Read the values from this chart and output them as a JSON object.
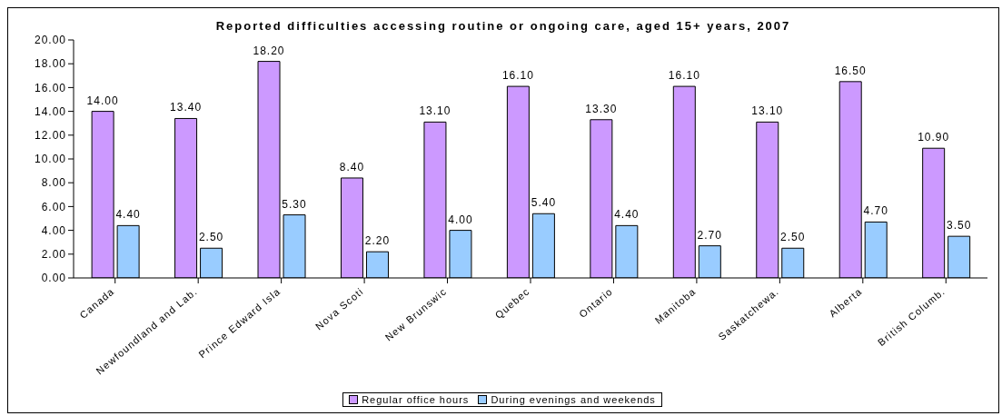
{
  "chart_data": {
    "type": "bar",
    "title": "Reported difficulties accessing routine or ongoing care, aged 15+ years, 2007",
    "categories": [
      "Canada",
      "Newfoundland and Lab.",
      "Prince Edward Isla",
      "Nova Scoti",
      "New Brunswic",
      "Quebec",
      "Ontario",
      "Manitoba",
      "Saskatchewa.",
      "Alberta",
      "British Columb."
    ],
    "series": [
      {
        "name": "Regular office hours",
        "color": "#cc99ff",
        "values": [
          14.0,
          13.4,
          18.2,
          8.4,
          13.1,
          16.1,
          13.3,
          16.1,
          13.1,
          16.5,
          10.9
        ],
        "value_labels": [
          "14.00",
          "13.40",
          "18.20",
          "8.40",
          "13.10",
          "16.10",
          "13.30",
          "16.10",
          "13.10",
          "16.50",
          "10.90"
        ]
      },
      {
        "name": "During evenings and weekends",
        "color": "#99ccff",
        "values": [
          4.4,
          2.5,
          5.3,
          2.2,
          4.0,
          5.4,
          4.4,
          2.7,
          2.5,
          4.7,
          3.5
        ],
        "value_labels": [
          "4.40",
          "2.50",
          "5.30",
          "2.20",
          "4.00",
          "5.40",
          "4.40",
          "2.70",
          "2.50",
          "4.70",
          "3.50"
        ]
      }
    ],
    "ylim": [
      0,
      20
    ],
    "yticks": [
      {
        "value": 0,
        "label": "0.00"
      },
      {
        "value": 2,
        "label": "2.00"
      },
      {
        "value": 4,
        "label": "4.00"
      },
      {
        "value": 6,
        "label": "6.00"
      },
      {
        "value": 8,
        "label": "8.00"
      },
      {
        "value": 10,
        "label": "10.00"
      },
      {
        "value": 12,
        "label": "12.00"
      },
      {
        "value": 14,
        "label": "14.00"
      },
      {
        "value": 16,
        "label": "16.00"
      },
      {
        "value": 18,
        "label": "18.00"
      },
      {
        "value": 20,
        "label": "20.00"
      }
    ],
    "legend": "bottom"
  }
}
